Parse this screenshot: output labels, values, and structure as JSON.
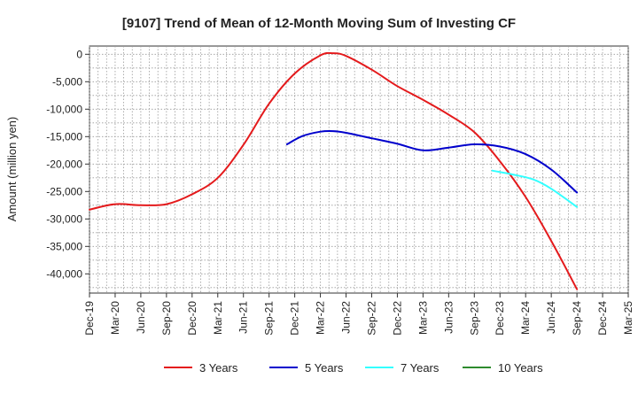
{
  "chart_data": {
    "type": "line",
    "title": "[9107]  Trend of Mean of 12-Month Moving Sum of Investing CF",
    "xlabel": "",
    "ylabel": "Amount (million yen)",
    "ylim": [
      -43500,
      1500
    ],
    "yticks": [
      0,
      -5000,
      -10000,
      -15000,
      -20000,
      -25000,
      -30000,
      -35000,
      -40000
    ],
    "ytick_labels": [
      "0",
      "-5,000",
      "-10,000",
      "-15,000",
      "-20,000",
      "-25,000",
      "-30,000",
      "-35,000",
      "-40,000"
    ],
    "x_categories": [
      "Dec-19",
      "Mar-20",
      "Jun-20",
      "Sep-20",
      "Dec-20",
      "Mar-21",
      "Jun-21",
      "Sep-21",
      "Dec-21",
      "Mar-22",
      "Jun-22",
      "Sep-22",
      "Dec-22",
      "Mar-23",
      "Jun-23",
      "Sep-23",
      "Dec-23",
      "Mar-24",
      "Jun-24",
      "Sep-24",
      "Dec-24",
      "Mar-25"
    ],
    "grid": true,
    "legend_position": "bottom",
    "series": [
      {
        "name": "3 Years",
        "color": "#e41a1c",
        "points": [
          [
            0,
            -28300
          ],
          [
            1,
            -27300
          ],
          [
            2,
            -27500
          ],
          [
            3,
            -27300
          ],
          [
            4,
            -25500
          ],
          [
            5,
            -22500
          ],
          [
            6,
            -16500
          ],
          [
            7,
            -9000
          ],
          [
            8,
            -3500
          ],
          [
            9,
            -200
          ],
          [
            9.5,
            200
          ],
          [
            10,
            -300
          ],
          [
            11,
            -2800
          ],
          [
            12,
            -5800
          ],
          [
            13,
            -8300
          ],
          [
            14,
            -11000
          ],
          [
            15,
            -14200
          ],
          [
            16,
            -19500
          ],
          [
            17,
            -26000
          ],
          [
            18,
            -34000
          ],
          [
            19,
            -42800
          ]
        ]
      },
      {
        "name": "5 Years",
        "color": "#0000cc",
        "points": [
          [
            7.7,
            -16400
          ],
          [
            8.3,
            -14900
          ],
          [
            9,
            -14100
          ],
          [
            9.5,
            -14000
          ],
          [
            10,
            -14300
          ],
          [
            11,
            -15300
          ],
          [
            12,
            -16300
          ],
          [
            13,
            -17500
          ],
          [
            14,
            -17000
          ],
          [
            15,
            -16400
          ],
          [
            16,
            -16800
          ],
          [
            17,
            -18200
          ],
          [
            18,
            -21000
          ],
          [
            19,
            -25200
          ]
        ]
      },
      {
        "name": "7 Years",
        "color": "#33ffff",
        "points": [
          [
            15.7,
            -21200
          ],
          [
            16.5,
            -21900
          ],
          [
            17.3,
            -22800
          ],
          [
            18,
            -24500
          ],
          [
            19,
            -27800
          ]
        ]
      },
      {
        "name": "10 Years",
        "color": "#2e8b2e",
        "points": []
      }
    ]
  }
}
